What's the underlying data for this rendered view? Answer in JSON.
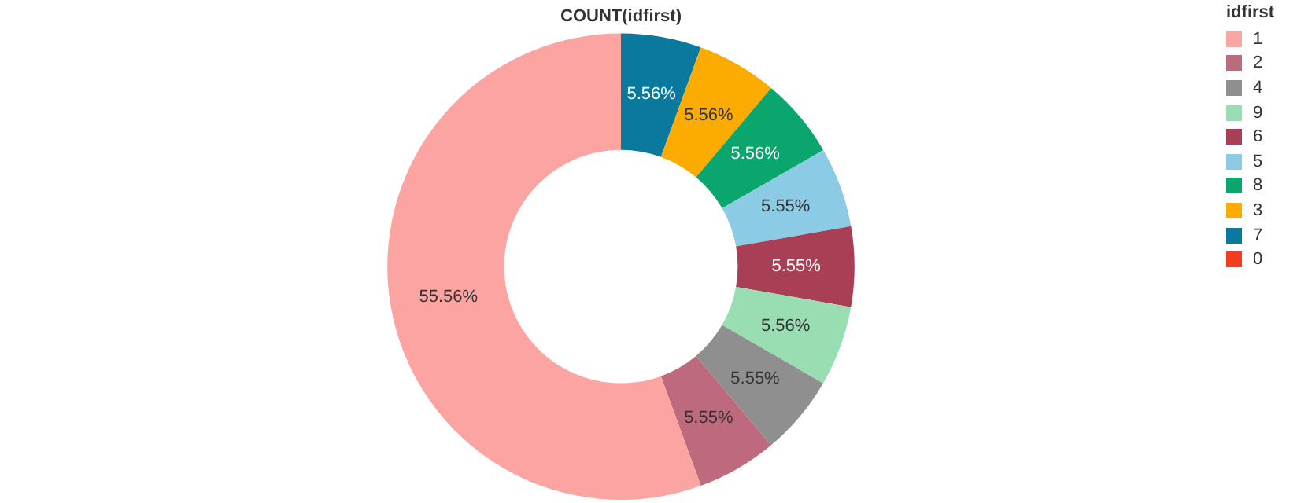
{
  "chart_data": {
    "type": "donut",
    "title": "COUNT(idfirst)",
    "legend_title": "idfirst",
    "legend": "top right",
    "categories": [
      "1",
      "2",
      "4",
      "9",
      "6",
      "5",
      "8",
      "3",
      "7",
      "0"
    ],
    "values": [
      55.56,
      5.55,
      5.55,
      5.56,
      5.55,
      5.55,
      5.56,
      5.56,
      5.56,
      0
    ],
    "value_labels": [
      "55.56%",
      "5.55%",
      "5.55%",
      "5.56%",
      "5.55%",
      "5.55%",
      "5.56%",
      "5.56%",
      "5.56%",
      null
    ],
    "colors": [
      "#fca4a2",
      "#bd6b7c",
      "#8f8f8f",
      "#99deb2",
      "#a93f55",
      "#8ccbe6",
      "#0aa66e",
      "#fcab00",
      "#097a9e",
      "#f43c24"
    ]
  }
}
